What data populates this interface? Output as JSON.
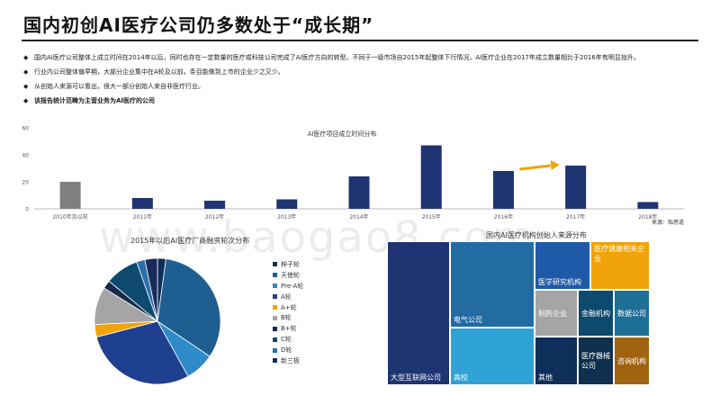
{
  "header": {
    "title": "国内初创AI医疗公司仍多数处于“成长期”"
  },
  "bullets": [
    {
      "text": "国内AI医疗公司整体上成立时间在2014年以后，同时也存在一定数量的医疗或科技公司完成了AI医疗方向的转型。不同于一级市场自2015年起整体下行情况，AI医疗企业在2017年成立数量相比于2016年有明显抬升。",
      "bold": false
    },
    {
      "text": "行业内公司整体偏早期，大部分企业集中在A轮及以前，条目能做到上市的企业少之又少。",
      "bold": false
    },
    {
      "text": "从创始人来源可以看出，很大一部分创始人来自非医疗行业。",
      "bold": false
    },
    {
      "text": "该报告统计范畴为主营业务为AI医疗的公司",
      "bold": true
    }
  ],
  "bullet_marker": "◆",
  "source": "来源：贻思道",
  "watermark": "www.baogao8.com",
  "colors": {
    "navy": "#1f3472",
    "gray": "#7f7f7f",
    "orange": "#f0a30a"
  },
  "chart_data": [
    {
      "type": "bar",
      "title": "AI医疗项目成立时间分布",
      "categories": [
        "2010年及以前",
        "2011年",
        "2012年",
        "2013年",
        "2014年",
        "2015年",
        "2016年",
        "2017年",
        "2018年"
      ],
      "values": [
        20,
        8,
        6,
        7,
        24,
        47,
        28,
        32,
        5
      ],
      "bar_colors": [
        "#7f7f7f",
        "#1f3472",
        "#1f3472",
        "#1f3472",
        "#1f3472",
        "#1f3472",
        "#1f3472",
        "#1f3472",
        "#1f3472"
      ],
      "ylim": [
        0,
        60
      ],
      "yticks": [
        0,
        20,
        40,
        60
      ],
      "grid": false,
      "annotation": "arrow from 2016年 toward 2017年 (orange, upward)"
    },
    {
      "type": "pie",
      "title": "2015年以后AI医疗厂商融资轮次分布",
      "labels": [
        "种子轮",
        "天使轮",
        "Pre-A轮",
        "A轮",
        "A+轮",
        "B轮",
        "B+轮",
        "C轮",
        "D轮",
        "新三板"
      ],
      "values": [
        2,
        30,
        7,
        27,
        3,
        9,
        2,
        8,
        2,
        3
      ],
      "colors": [
        "#0e2f5a",
        "#1f5e91",
        "#2e8ac8",
        "#1f3f8f",
        "#f0a30a",
        "#a5a5a5",
        "#162a4a",
        "#0d4a6e",
        "#2a6fa8",
        "#1b2a5c"
      ],
      "legend_position": "right"
    },
    {
      "type": "treemap",
      "title": "国内AI医疗机构创始人来源分布",
      "items": [
        {
          "label": "大型互联网公司",
          "value": 23,
          "color": "#1f3472"
        },
        {
          "label": "电气公司",
          "value": 12,
          "color": "#236ba3"
        },
        {
          "label": "高校",
          "value": 10,
          "color": "#2fa3d6"
        },
        {
          "label": "医学研究机构",
          "value": 6,
          "color": "#1f5aa8"
        },
        {
          "label": "医疗健康相关企业",
          "value": 6,
          "color": "#f0a30a"
        },
        {
          "label": "制药企业",
          "value": 4,
          "color": "#a5a5a5"
        },
        {
          "label": "其他",
          "value": 4,
          "color": "#0e2f5a"
        },
        {
          "label": "金融机构",
          "value": 3,
          "color": "#0d4a6e"
        },
        {
          "label": "数据公司",
          "value": 3,
          "color": "#1d6f95"
        },
        {
          "label": "医疗器械公司",
          "value": 3,
          "color": "#0f2f4f"
        },
        {
          "label": "咨询机构",
          "value": 2,
          "color": "#a06410"
        }
      ]
    }
  ]
}
